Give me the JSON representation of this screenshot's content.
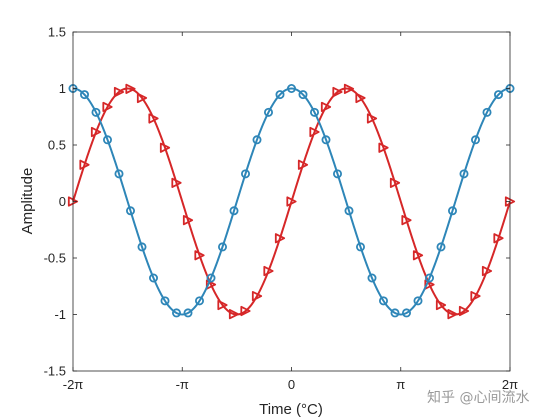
{
  "chart_data": {
    "type": "line",
    "xlabel": "Time (°C)",
    "ylabel": "Amplitude",
    "xlim": [
      -6.2832,
      6.2832
    ],
    "ylim": [
      -1.5,
      1.5
    ],
    "xticks": [
      -6.2832,
      -3.1416,
      0,
      3.1416,
      6.2832
    ],
    "xtick_labels": [
      "-2π",
      "-π",
      "0",
      "π",
      "2π"
    ],
    "yticks": [
      -1.5,
      -1,
      -0.5,
      0,
      0.5,
      1,
      1.5
    ],
    "ytick_labels": [
      "-1.5",
      "-1",
      "-0.5",
      "0",
      "0.5",
      "1",
      "1.5"
    ],
    "grid": false,
    "series": [
      {
        "color": "#d62728",
        "marker": "triangle-right",
        "x": [
          -6.2832,
          -5.9525,
          -5.6218,
          -5.2911,
          -4.9604,
          -4.6297,
          -4.299,
          -3.9683,
          -3.6376,
          -3.3069,
          -2.9762,
          -2.6455,
          -2.3148,
          -1.9841,
          -1.6534,
          -1.3227,
          -0.992,
          -0.6614,
          -0.3307,
          0.0,
          0.3307,
          0.6614,
          0.992,
          1.3227,
          1.6534,
          1.9841,
          2.3148,
          2.6455,
          2.9762,
          3.3069,
          3.6376,
          3.9683,
          4.299,
          4.6297,
          4.9604,
          5.2911,
          5.6218,
          5.9525,
          6.2832
        ],
        "y": [
          0.0,
          0.325,
          0.615,
          0.837,
          0.969,
          0.997,
          0.916,
          0.735,
          0.476,
          0.165,
          -0.165,
          -0.476,
          -0.735,
          -0.916,
          -0.997,
          -0.969,
          -0.837,
          -0.615,
          -0.325,
          0.0,
          0.325,
          0.615,
          0.837,
          0.969,
          0.997,
          0.916,
          0.735,
          0.476,
          0.165,
          -0.165,
          -0.476,
          -0.735,
          -0.916,
          -0.997,
          -0.969,
          -0.837,
          -0.615,
          -0.325,
          0.0
        ]
      },
      {
        "color": "#2e86b8",
        "marker": "circle",
        "x": [
          -6.2832,
          -5.9525,
          -5.6218,
          -5.2911,
          -4.9604,
          -4.6297,
          -4.299,
          -3.9683,
          -3.6376,
          -3.3069,
          -2.9762,
          -2.6455,
          -2.3148,
          -1.9841,
          -1.6534,
          -1.3227,
          -0.992,
          -0.6614,
          -0.3307,
          0.0,
          0.3307,
          0.6614,
          0.992,
          1.3227,
          1.6534,
          1.9841,
          2.3148,
          2.6455,
          2.9762,
          3.3069,
          3.6376,
          3.9683,
          4.299,
          4.6297,
          4.9604,
          5.2911,
          5.6218,
          5.9525,
          6.2832
        ],
        "y": [
          1.0,
          0.946,
          0.789,
          0.546,
          0.245,
          -0.082,
          -0.402,
          -0.677,
          -0.879,
          -0.986,
          -0.986,
          -0.879,
          -0.677,
          -0.402,
          -0.082,
          0.245,
          0.546,
          0.789,
          0.946,
          1.0,
          0.946,
          0.789,
          0.546,
          0.245,
          -0.082,
          -0.402,
          -0.677,
          -0.879,
          -0.986,
          -0.986,
          -0.879,
          -0.677,
          -0.402,
          -0.082,
          0.245,
          0.546,
          0.789,
          0.946,
          1.0
        ]
      }
    ]
  },
  "watermark": "知乎 @心间流水"
}
